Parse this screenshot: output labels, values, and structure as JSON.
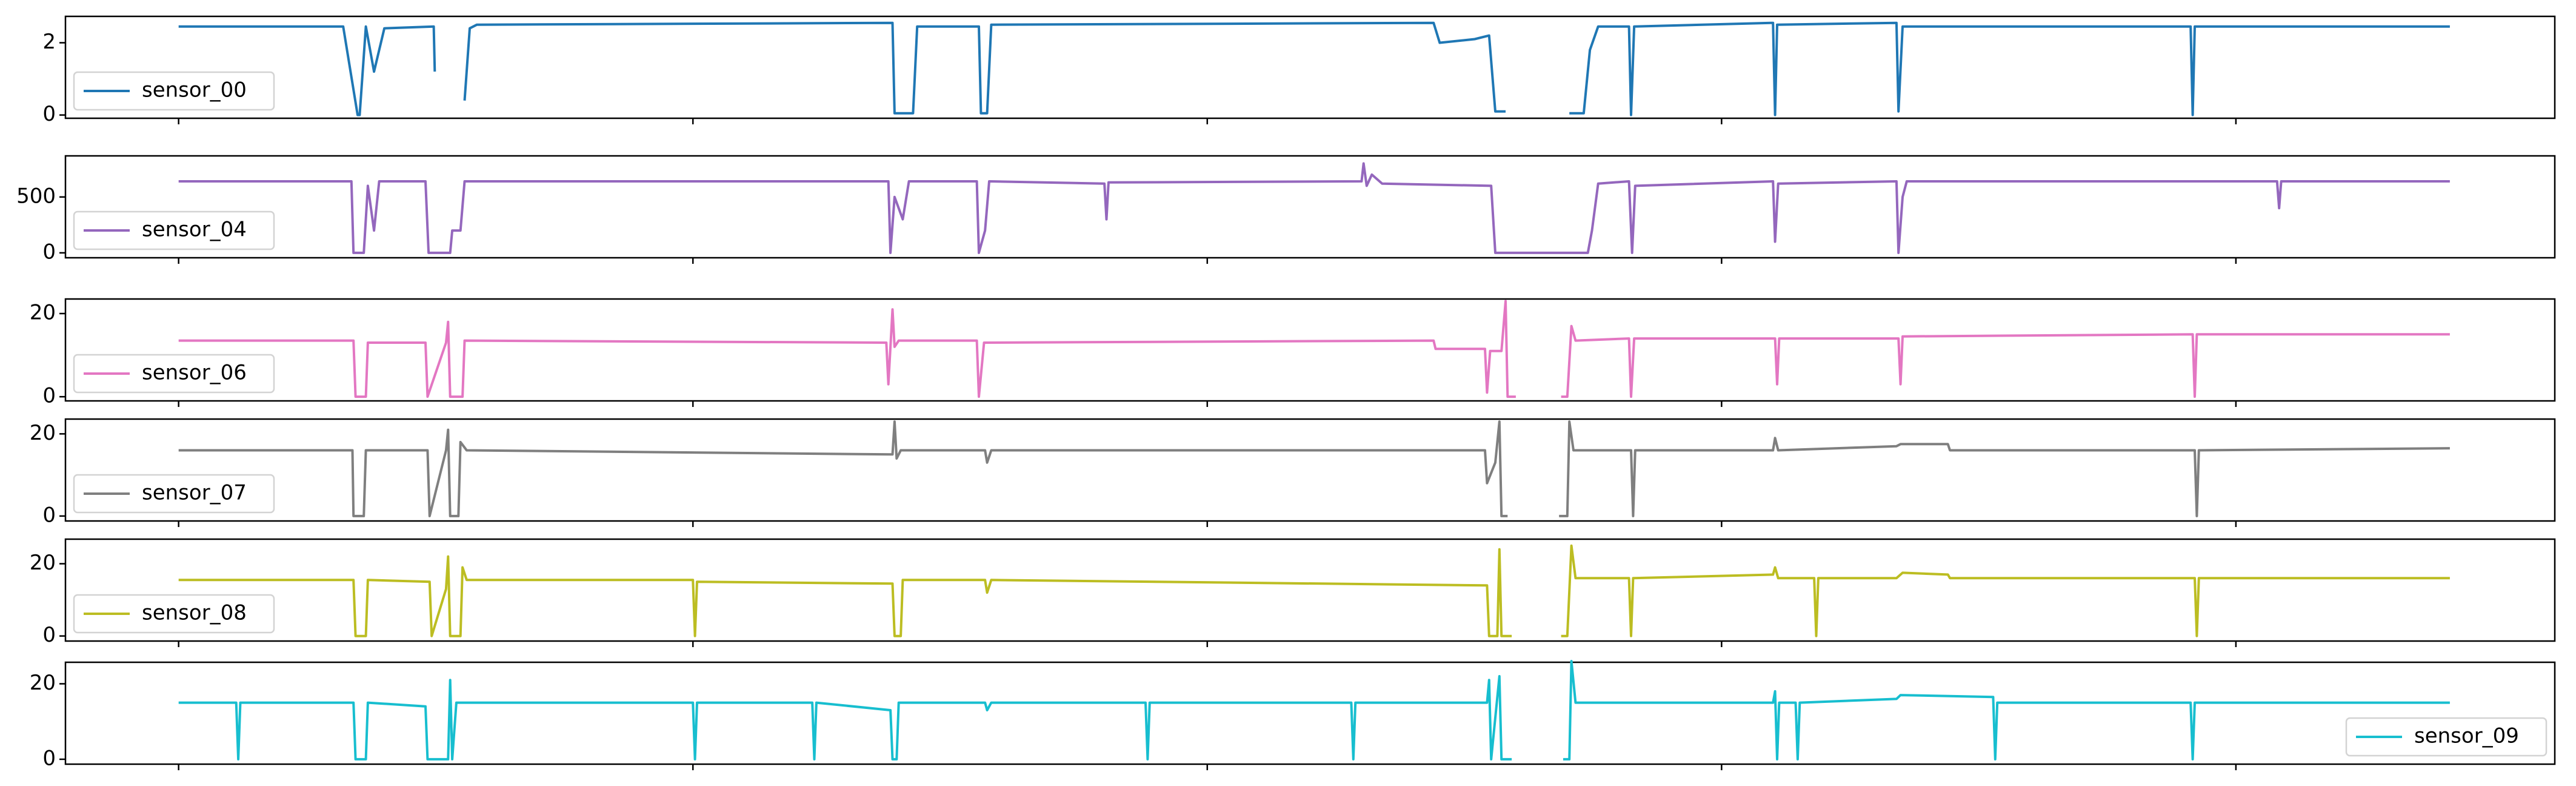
{
  "chart_data": [
    {
      "type": "line",
      "xlim": [
        -11000,
        231000
      ],
      "ylim": [
        -0.09,
        2.73
      ],
      "yticks": [
        0,
        2
      ],
      "xticks": [
        0,
        50000,
        100000,
        150000,
        200000
      ],
      "legend": "lower left",
      "x": [
        0,
        16000,
        17400,
        17600,
        18200,
        19000,
        20000,
        24800,
        24900,
        26000,
        27800,
        28300,
        29000,
        69400,
        69600,
        71400,
        71800,
        77800,
        78000,
        78600,
        79000,
        122000,
        122600,
        126000,
        127400,
        128000,
        129000,
        132000,
        135200,
        136600,
        137200,
        138000,
        141000,
        141200,
        141500,
        155000,
        155200,
        155400,
        167000,
        167200,
        167600,
        195600,
        195800,
        196000,
        220800
      ],
      "series": [
        {
          "name": "sensor_00",
          "color": "#1f77b4",
          "values": [
            2.45,
            2.45,
            0,
            0,
            2.45,
            1.2,
            2.4,
            2.45,
            1.2,
            null,
            0.4,
            2.4,
            2.5,
            2.55,
            0.05,
            0.05,
            2.45,
            2.45,
            0.05,
            0.05,
            2.5,
            2.55,
            2.0,
            2.1,
            2.2,
            0.1,
            0.1,
            null,
            0.05,
            0.05,
            1.8,
            2.45,
            2.45,
            0,
            2.45,
            2.55,
            0,
            2.5,
            2.55,
            0.1,
            2.45,
            2.45,
            0,
            2.45,
            2.45
          ]
        }
      ]
    },
    {
      "type": "line",
      "xlim": [
        -11000,
        231000
      ],
      "ylim": [
        -44,
        868
      ],
      "yticks": [
        0,
        500
      ],
      "xticks": [
        0,
        50000,
        100000,
        150000,
        200000
      ],
      "legend": "lower left",
      "x": [
        0,
        16800,
        17000,
        18000,
        18400,
        19000,
        19500,
        24000,
        24300,
        26400,
        26600,
        27400,
        27800,
        69000,
        69200,
        69600,
        70400,
        71000,
        77600,
        77800,
        78400,
        78800,
        90000,
        90200,
        90400,
        115000,
        115200,
        115500,
        116000,
        117000,
        127600,
        128000,
        137000,
        137400,
        138000,
        141000,
        141300,
        141600,
        155000,
        155200,
        155500,
        167000,
        167200,
        167600,
        168000,
        204000,
        204200,
        204400,
        220800
      ],
      "series": [
        {
          "name": "sensor_04",
          "color": "#9467bd",
          "values": [
            640,
            640,
            0,
            0,
            600,
            200,
            640,
            640,
            0,
            0,
            200,
            200,
            640,
            640,
            0,
            500,
            300,
            640,
            640,
            0,
            200,
            640,
            620,
            300,
            630,
            640,
            800,
            600,
            700,
            620,
            600,
            0,
            0,
            200,
            620,
            640,
            0,
            600,
            640,
            100,
            620,
            640,
            0,
            500,
            640,
            640,
            400,
            640,
            640
          ]
        }
      ]
    },
    {
      "type": "line",
      "xlim": [
        -11000,
        231000
      ],
      "ylim": [
        -1,
        23.5
      ],
      "yticks": [
        0,
        20
      ],
      "xticks": [
        0,
        50000,
        100000,
        150000,
        200000
      ],
      "legend": "lower left",
      "x": [
        0,
        17000,
        17200,
        18200,
        18400,
        24000,
        24200,
        26000,
        26200,
        26400,
        27600,
        27800,
        68800,
        69000,
        69400,
        69600,
        70000,
        77600,
        77800,
        78300,
        122000,
        122200,
        127000,
        127200,
        127500,
        128600,
        129000,
        129200,
        130000,
        132000,
        134400,
        135000,
        135400,
        135800,
        141000,
        141200,
        141500,
        155200,
        155400,
        155600,
        167200,
        167400,
        167600,
        195800,
        196000,
        196200,
        220800
      ],
      "series": [
        {
          "name": "sensor_06",
          "color": "#e377c2",
          "values": [
            13.5,
            13.5,
            0,
            0,
            13,
            13,
            0,
            13,
            18,
            0,
            0,
            13.5,
            13,
            3,
            21,
            12,
            13.5,
            13.5,
            0,
            13,
            13.5,
            11.5,
            11.5,
            1,
            11,
            11,
            23,
            0,
            0,
            null,
            0,
            0,
            17,
            13.5,
            14,
            0,
            14,
            14,
            3,
            14,
            14,
            3,
            14.5,
            15,
            0,
            15,
            15
          ]
        }
      ]
    },
    {
      "type": "line",
      "xlim": [
        -11000,
        231000
      ],
      "ylim": [
        -1.2,
        23.6
      ],
      "yticks": [
        0,
        20
      ],
      "xticks": [
        0,
        50000,
        100000,
        150000,
        200000
      ],
      "legend": "lower left",
      "x": [
        0,
        16900,
        17000,
        18000,
        18200,
        24200,
        24400,
        26000,
        26200,
        26400,
        27200,
        27400,
        28000,
        69400,
        69600,
        69800,
        70200,
        78400,
        78600,
        79000,
        127000,
        127200,
        128000,
        128400,
        128600,
        129200,
        132000,
        134200,
        135000,
        135200,
        135600,
        141200,
        141400,
        141600,
        155000,
        155200,
        155500,
        167000,
        167400,
        172000,
        172200,
        196000,
        196200,
        196400,
        220800
      ],
      "series": [
        {
          "name": "sensor_07",
          "color": "#7f7f7f",
          "values": [
            16,
            16,
            0,
            0,
            16,
            16,
            0,
            16,
            21,
            0,
            0,
            18,
            16,
            15,
            23,
            14,
            16,
            16,
            13,
            16,
            16,
            8,
            13,
            23,
            0,
            0,
            null,
            0,
            0,
            23,
            16,
            16,
            0,
            16,
            16,
            19,
            16,
            17,
            17.5,
            17.5,
            16,
            16,
            0,
            16,
            16.5
          ]
        }
      ]
    },
    {
      "type": "line",
      "xlim": [
        -11000,
        231000
      ],
      "ylim": [
        -1.4,
        26.8
      ],
      "yticks": [
        0,
        20
      ],
      "xticks": [
        0,
        50000,
        100000,
        150000,
        200000
      ],
      "legend": "lower left",
      "x": [
        0,
        17000,
        17200,
        18200,
        18400,
        24400,
        24600,
        26000,
        26200,
        26400,
        27400,
        27600,
        28000,
        50000,
        50200,
        50400,
        69400,
        69600,
        70200,
        70400,
        78400,
        78600,
        79000,
        127200,
        127400,
        128200,
        128400,
        128600,
        129600,
        132000,
        134400,
        135000,
        135400,
        135800,
        141000,
        141200,
        141400,
        155000,
        155200,
        155500,
        159000,
        159200,
        159400,
        167000,
        167600,
        172000,
        172200,
        196000,
        196200,
        196400,
        220800
      ],
      "series": [
        {
          "name": "sensor_08",
          "color": "#bcbd22",
          "values": [
            15.5,
            15.5,
            0,
            0,
            15.5,
            15,
            0,
            13,
            22,
            0,
            0,
            19,
            15.5,
            15.5,
            0,
            15,
            14.5,
            0,
            0,
            15.5,
            15.5,
            12,
            15.5,
            14,
            0,
            0,
            24,
            0,
            0,
            null,
            0,
            0,
            25,
            16,
            16,
            0,
            16,
            17,
            19,
            16,
            16,
            0,
            16,
            16,
            17.5,
            17,
            16,
            16,
            0,
            16,
            16
          ]
        }
      ]
    },
    {
      "type": "line",
      "xlim": [
        -11000,
        231000
      ],
      "ylim": [
        -1.3,
        25.7
      ],
      "yticks": [
        0,
        20
      ],
      "xticks": [
        0,
        50000,
        100000,
        150000,
        200000
      ],
      "legend": "lower right",
      "x": [
        0,
        5600,
        5800,
        6000,
        17000,
        17200,
        18200,
        18400,
        24000,
        24200,
        26200,
        26400,
        26600,
        27000,
        50000,
        50200,
        50400,
        61600,
        61800,
        62000,
        69200,
        69400,
        69800,
        70000,
        78400,
        78600,
        79000,
        94000,
        94200,
        94400,
        114000,
        114200,
        114400,
        127200,
        127400,
        127600,
        128400,
        128600,
        129600,
        132000,
        134600,
        135200,
        135400,
        135800,
        155000,
        155200,
        155400,
        155600,
        157200,
        157400,
        157600,
        167000,
        167400,
        176400,
        176600,
        176800,
        195600,
        195800,
        196000,
        220800
      ],
      "series": [
        {
          "name": "sensor_09",
          "color": "#17becf",
          "values": [
            15,
            15,
            0,
            15,
            15,
            0,
            0,
            15,
            14,
            0,
            0,
            21,
            0,
            15,
            15,
            0,
            15,
            15,
            0,
            15,
            13,
            0,
            0,
            15,
            15,
            13,
            15,
            15,
            0,
            15,
            15,
            0,
            15,
            15,
            21,
            0,
            22,
            0,
            0,
            null,
            0,
            0,
            26,
            15,
            15,
            18,
            0,
            15,
            15,
            0,
            15,
            16,
            17,
            16.5,
            0,
            15,
            15,
            0,
            15,
            15
          ]
        }
      ]
    }
  ]
}
